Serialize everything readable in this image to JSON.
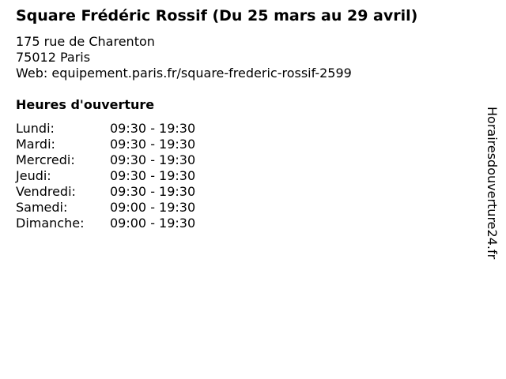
{
  "title": "Square Frédéric Rossif (Du 25 mars au 29 avril)",
  "address": {
    "street": "175 rue de Charenton",
    "city": "75012 Paris",
    "web": "Web: equipement.paris.fr/square-frederic-rossif-2599"
  },
  "hours_heading": "Heures d'ouverture",
  "hours": [
    {
      "day": "Lundi:",
      "time": "09:30 - 19:30"
    },
    {
      "day": "Mardi:",
      "time": "09:30 - 19:30"
    },
    {
      "day": "Mercredi:",
      "time": "09:30 - 19:30"
    },
    {
      "day": "Jeudi:",
      "time": "09:30 - 19:30"
    },
    {
      "day": "Vendredi:",
      "time": "09:30 - 19:30"
    },
    {
      "day": "Samedi:",
      "time": "09:00 - 19:30"
    },
    {
      "day": "Dimanche:",
      "time": "09:00 - 19:30"
    }
  ],
  "watermark": "Horairesdouverture24.fr"
}
